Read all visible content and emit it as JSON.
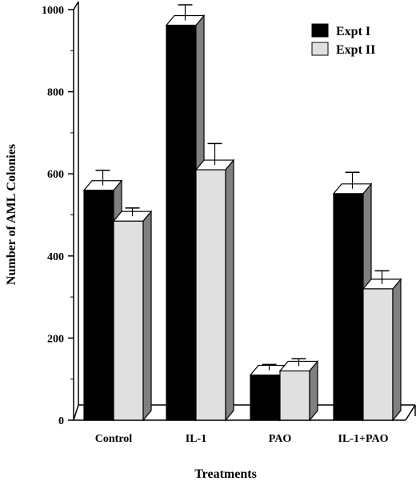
{
  "chart_data": {
    "type": "bar",
    "categories": [
      "Control",
      "IL-1",
      "PAO",
      "IL-1+PAO"
    ],
    "series": [
      {
        "name": "Expt I",
        "values": [
          560,
          962,
          110,
          552
        ],
        "errors": [
          37,
          38,
          14,
          40
        ],
        "color": "#000000"
      },
      {
        "name": "Expt II",
        "values": [
          485,
          610,
          120,
          320
        ],
        "errors": [
          20,
          52,
          18,
          32
        ],
        "color": "#e0e0e0"
      }
    ],
    "xlabel": "Treatments",
    "ylabel": "Number of AML Colonies",
    "ylim": [
      0,
      1000
    ],
    "yticks": [
      "0",
      "200",
      "400",
      "600",
      "800",
      "1000"
    ],
    "legend_position": "top-right",
    "grid": false,
    "style": "3d-bars"
  }
}
